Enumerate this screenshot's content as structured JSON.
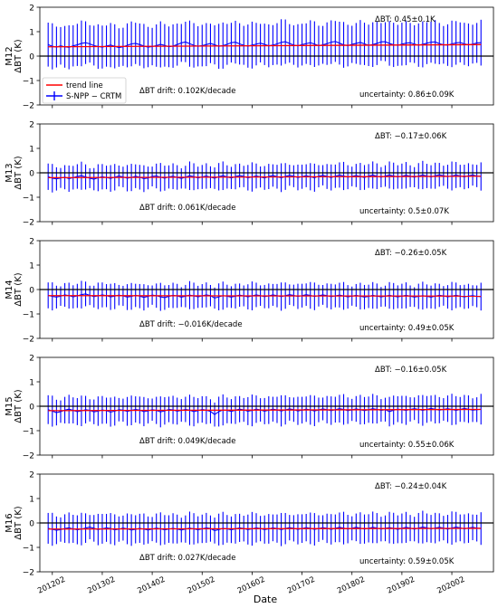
{
  "figure": {
    "xlabel": "Date",
    "x_tick_labels": [
      "201202",
      "201302",
      "201402",
      "201502",
      "201602",
      "201702",
      "201802",
      "201902",
      "202002"
    ],
    "colors": {
      "series": "#0000ff",
      "trend": "#ff0000",
      "zero_line": "#000000"
    },
    "legend": {
      "placement": "lower-left of first panel",
      "trend_label": "trend line",
      "series_label": "S-NPP − CRTM"
    }
  },
  "chart_data": [
    {
      "type": "line",
      "band": "M12",
      "ylabel_band": "M12",
      "ylabel": "ΔBT (K)",
      "ylim": [
        -2,
        2
      ],
      "yticks": [
        "2",
        "1",
        "0",
        "−1",
        "−2"
      ],
      "xlim": [
        "2011-11",
        "2020-12"
      ],
      "start_month": "2012-01",
      "n_points": 105,
      "mean_bias_text": "ΔBT: 0.45±0.1K",
      "drift_text": "ΔBT drift: 0.102K/decade",
      "uncertainty_text": "uncertainty: 0.86±0.09K",
      "mean": 0.45,
      "half_range": 0.86,
      "trend_start": 0.38,
      "trend_end": 0.47,
      "series": [
        {
          "name": "S-NPP − CRTM",
          "values": [
            0.47,
            0.4,
            0.37,
            0.42,
            0.38,
            0.36,
            0.42,
            0.46,
            0.52,
            0.55,
            0.5,
            0.43,
            0.39,
            0.37,
            0.41,
            0.45,
            0.4,
            0.35,
            0.38,
            0.44,
            0.5,
            0.52,
            0.47,
            0.41,
            0.37,
            0.39,
            0.43,
            0.48,
            0.44,
            0.38,
            0.41,
            0.47,
            0.54,
            0.58,
            0.51,
            0.44,
            0.4,
            0.43,
            0.47,
            0.52,
            0.46,
            0.4,
            0.43,
            0.48,
            0.55,
            0.57,
            0.5,
            0.44,
            0.41,
            0.45,
            0.49,
            0.53,
            0.48,
            0.42,
            0.45,
            0.5,
            0.56,
            0.59,
            0.52,
            0.45,
            0.42,
            0.47,
            0.51,
            0.55,
            0.49,
            0.43,
            0.46,
            0.51,
            0.57,
            0.6,
            0.53,
            0.46,
            0.43,
            0.48,
            0.52,
            0.56,
            0.5,
            0.44,
            0.47,
            0.52,
            0.58,
            0.59,
            0.52,
            0.46,
            0.44,
            0.49,
            0.53,
            0.55,
            0.49,
            0.45,
            0.48,
            0.53,
            0.57,
            0.58,
            0.51,
            0.46,
            0.45,
            0.5,
            0.54,
            0.56,
            0.5,
            0.46,
            0.49,
            0.54,
            0.55
          ]
        }
      ]
    },
    {
      "type": "line",
      "band": "M13",
      "ylabel_band": "M13",
      "ylabel": "ΔBT (K)",
      "ylim": [
        -2,
        2
      ],
      "yticks": [
        "2",
        "1",
        "0",
        "−1",
        "−2"
      ],
      "xlim": [
        "2011-11",
        "2020-12"
      ],
      "start_month": "2012-01",
      "n_points": 105,
      "mean_bias_text": "ΔBT: −0.17±0.06K",
      "drift_text": "ΔBT drift: 0.061K/decade",
      "uncertainty_text": "uncertainty: 0.5±0.07K",
      "mean": -0.17,
      "half_range": 0.5,
      "trend_start": -0.2,
      "trend_end": -0.14,
      "series": [
        {
          "name": "S-NPP − CRTM",
          "values": [
            -0.16,
            -0.22,
            -0.25,
            -0.21,
            -0.18,
            -0.24,
            -0.2,
            -0.15,
            -0.12,
            -0.17,
            -0.22,
            -0.26,
            -0.2,
            -0.16,
            -0.19,
            -0.23,
            -0.18,
            -0.13,
            -0.17,
            -0.22,
            -0.19,
            -0.14,
            -0.18,
            -0.24,
            -0.21,
            -0.15,
            -0.13,
            -0.18,
            -0.22,
            -0.17,
            -0.14,
            -0.19,
            -0.23,
            -0.18,
            -0.12,
            -0.16,
            -0.21,
            -0.17,
            -0.13,
            -0.18,
            -0.22,
            -0.16,
            -0.12,
            -0.17,
            -0.21,
            -0.16,
            -0.11,
            -0.15,
            -0.2,
            -0.17,
            -0.13,
            -0.17,
            -0.21,
            -0.15,
            -0.11,
            -0.16,
            -0.2,
            -0.15,
            -0.1,
            -0.14,
            -0.19,
            -0.16,
            -0.12,
            -0.16,
            -0.2,
            -0.14,
            -0.1,
            -0.15,
            -0.19,
            -0.14,
            -0.09,
            -0.13,
            -0.18,
            -0.15,
            -0.11,
            -0.15,
            -0.19,
            -0.13,
            -0.09,
            -0.14,
            -0.18,
            -0.13,
            -0.09,
            -0.13,
            -0.17,
            -0.14,
            -0.1,
            -0.14,
            -0.18,
            -0.13,
            -0.09,
            -0.13,
            -0.17,
            -0.12,
            -0.08,
            -0.12,
            -0.16,
            -0.13,
            -0.09,
            -0.13,
            -0.17,
            -0.12,
            -0.09,
            -0.13,
            -0.15
          ]
        }
      ]
    },
    {
      "type": "line",
      "band": "M14",
      "ylabel_band": "M14",
      "ylabel": "ΔBT (K)",
      "ylim": [
        -2,
        2
      ],
      "yticks": [
        "2",
        "1",
        "0",
        "−1",
        "−2"
      ],
      "xlim": [
        "2011-11",
        "2020-12"
      ],
      "start_month": "2012-01",
      "n_points": 105,
      "mean_bias_text": "ΔBT: −0.26±0.05K",
      "drift_text": "ΔBT drift: −0.016K/decade",
      "uncertainty_text": "uncertainty: 0.49±0.05K",
      "mean": -0.26,
      "half_range": 0.49,
      "trend_start": -0.25,
      "trend_end": -0.27,
      "series": [
        {
          "name": "S-NPP − CRTM",
          "values": [
            -0.24,
            -0.28,
            -0.31,
            -0.27,
            -0.22,
            -0.25,
            -0.3,
            -0.26,
            -0.21,
            -0.18,
            -0.24,
            -0.29,
            -0.26,
            -0.22,
            -0.25,
            -0.3,
            -0.27,
            -0.23,
            -0.26,
            -0.31,
            -0.28,
            -0.24,
            -0.27,
            -0.32,
            -0.28,
            -0.23,
            -0.25,
            -0.3,
            -0.33,
            -0.28,
            -0.24,
            -0.26,
            -0.31,
            -0.27,
            -0.23,
            -0.26,
            -0.3,
            -0.26,
            -0.22,
            -0.25,
            -0.35,
            -0.3,
            -0.25,
            -0.27,
            -0.31,
            -0.27,
            -0.23,
            -0.26,
            -0.3,
            -0.26,
            -0.22,
            -0.25,
            -0.29,
            -0.26,
            -0.22,
            -0.25,
            -0.29,
            -0.25,
            -0.21,
            -0.24,
            -0.28,
            -0.25,
            -0.21,
            -0.24,
            -0.28,
            -0.25,
            -0.22,
            -0.25,
            -0.29,
            -0.26,
            -0.23,
            -0.26,
            -0.3,
            -0.27,
            -0.24,
            -0.27,
            -0.31,
            -0.28,
            -0.24,
            -0.27,
            -0.3,
            -0.27,
            -0.24,
            -0.27,
            -0.3,
            -0.27,
            -0.24,
            -0.27,
            -0.31,
            -0.28,
            -0.25,
            -0.28,
            -0.31,
            -0.27,
            -0.24,
            -0.26,
            -0.3,
            -0.27,
            -0.24,
            -0.27,
            -0.3,
            -0.27,
            -0.25,
            -0.28,
            -0.29
          ]
        }
      ]
    },
    {
      "type": "line",
      "band": "M15",
      "ylabel_band": "M15",
      "ylabel": "ΔBT (K)",
      "ylim": [
        -2,
        2
      ],
      "yticks": [
        "2",
        "1",
        "0",
        "−1",
        "−2"
      ],
      "xlim": [
        "2011-11",
        "2020-12"
      ],
      "start_month": "2012-01",
      "n_points": 105,
      "mean_bias_text": "ΔBT: −0.16±0.05K",
      "drift_text": "ΔBT drift: 0.049K/decade",
      "uncertainty_text": "uncertainty: 0.55±0.06K",
      "mean": -0.16,
      "half_range": 0.55,
      "trend_start": -0.18,
      "trend_end": -0.13,
      "series": [
        {
          "name": "S-NPP − CRTM",
          "values": [
            -0.14,
            -0.2,
            -0.26,
            -0.22,
            -0.16,
            -0.12,
            -0.17,
            -0.22,
            -0.19,
            -0.14,
            -0.17,
            -0.23,
            -0.2,
            -0.15,
            -0.18,
            -0.24,
            -0.2,
            -0.14,
            -0.16,
            -0.21,
            -0.17,
            -0.13,
            -0.16,
            -0.22,
            -0.19,
            -0.14,
            -0.17,
            -0.23,
            -0.19,
            -0.13,
            -0.15,
            -0.2,
            -0.17,
            -0.13,
            -0.16,
            -0.22,
            -0.18,
            -0.13,
            -0.16,
            -0.21,
            -0.34,
            -0.22,
            -0.15,
            -0.17,
            -0.21,
            -0.16,
            -0.12,
            -0.15,
            -0.2,
            -0.17,
            -0.12,
            -0.15,
            -0.2,
            -0.16,
            -0.12,
            -0.15,
            -0.19,
            -0.15,
            -0.11,
            -0.14,
            -0.19,
            -0.16,
            -0.12,
            -0.15,
            -0.19,
            -0.15,
            -0.11,
            -0.14,
            -0.18,
            -0.14,
            -0.1,
            -0.13,
            -0.18,
            -0.15,
            -0.11,
            -0.14,
            -0.18,
            -0.14,
            -0.1,
            -0.13,
            -0.17,
            -0.14,
            -0.22,
            -0.16,
            -0.12,
            -0.14,
            -0.17,
            -0.13,
            -0.1,
            -0.13,
            -0.17,
            -0.13,
            -0.09,
            -0.12,
            -0.16,
            -0.13,
            -0.1,
            -0.13,
            -0.17,
            -0.13,
            -0.09,
            -0.12,
            -0.16,
            -0.14,
            -0.12
          ]
        }
      ]
    },
    {
      "type": "line",
      "band": "M16",
      "ylabel_band": "M16",
      "ylabel": "ΔBT (K)",
      "ylim": [
        -2,
        2
      ],
      "yticks": [
        "2",
        "1",
        "0",
        "−1",
        "−2"
      ],
      "xlim": [
        "2011-11",
        "2020-12"
      ],
      "start_month": "2012-01",
      "n_points": 105,
      "mean_bias_text": "ΔBT: −0.24±0.04K",
      "drift_text": "ΔBT drift: 0.027K/decade",
      "uncertainty_text": "uncertainty: 0.59±0.05K",
      "mean": -0.24,
      "half_range": 0.59,
      "trend_start": -0.25,
      "trend_end": -0.22,
      "series": [
        {
          "name": "S-NPP − CRTM",
          "values": [
            -0.22,
            -0.26,
            -0.3,
            -0.27,
            -0.23,
            -0.2,
            -0.24,
            -0.28,
            -0.25,
            -0.21,
            -0.17,
            -0.22,
            -0.27,
            -0.24,
            -0.2,
            -0.23,
            -0.28,
            -0.25,
            -0.21,
            -0.24,
            -0.29,
            -0.26,
            -0.22,
            -0.25,
            -0.29,
            -0.25,
            -0.21,
            -0.24,
            -0.28,
            -0.25,
            -0.22,
            -0.25,
            -0.29,
            -0.25,
            -0.21,
            -0.24,
            -0.28,
            -0.24,
            -0.2,
            -0.23,
            -0.31,
            -0.27,
            -0.22,
            -0.24,
            -0.28,
            -0.24,
            -0.2,
            -0.23,
            -0.27,
            -0.24,
            -0.2,
            -0.23,
            -0.27,
            -0.24,
            -0.2,
            -0.23,
            -0.27,
            -0.23,
            -0.19,
            -0.22,
            -0.26,
            -0.23,
            -0.19,
            -0.22,
            -0.26,
            -0.23,
            -0.19,
            -0.22,
            -0.26,
            -0.22,
            -0.18,
            -0.21,
            -0.25,
            -0.22,
            -0.18,
            -0.21,
            -0.25,
            -0.22,
            -0.18,
            -0.21,
            -0.25,
            -0.22,
            -0.19,
            -0.22,
            -0.26,
            -0.22,
            -0.18,
            -0.21,
            -0.25,
            -0.21,
            -0.17,
            -0.2,
            -0.24,
            -0.21,
            -0.18,
            -0.21,
            -0.25,
            -0.21,
            -0.17,
            -0.2,
            -0.24,
            -0.21,
            -0.18,
            -0.21,
            -0.23
          ]
        }
      ]
    }
  ]
}
